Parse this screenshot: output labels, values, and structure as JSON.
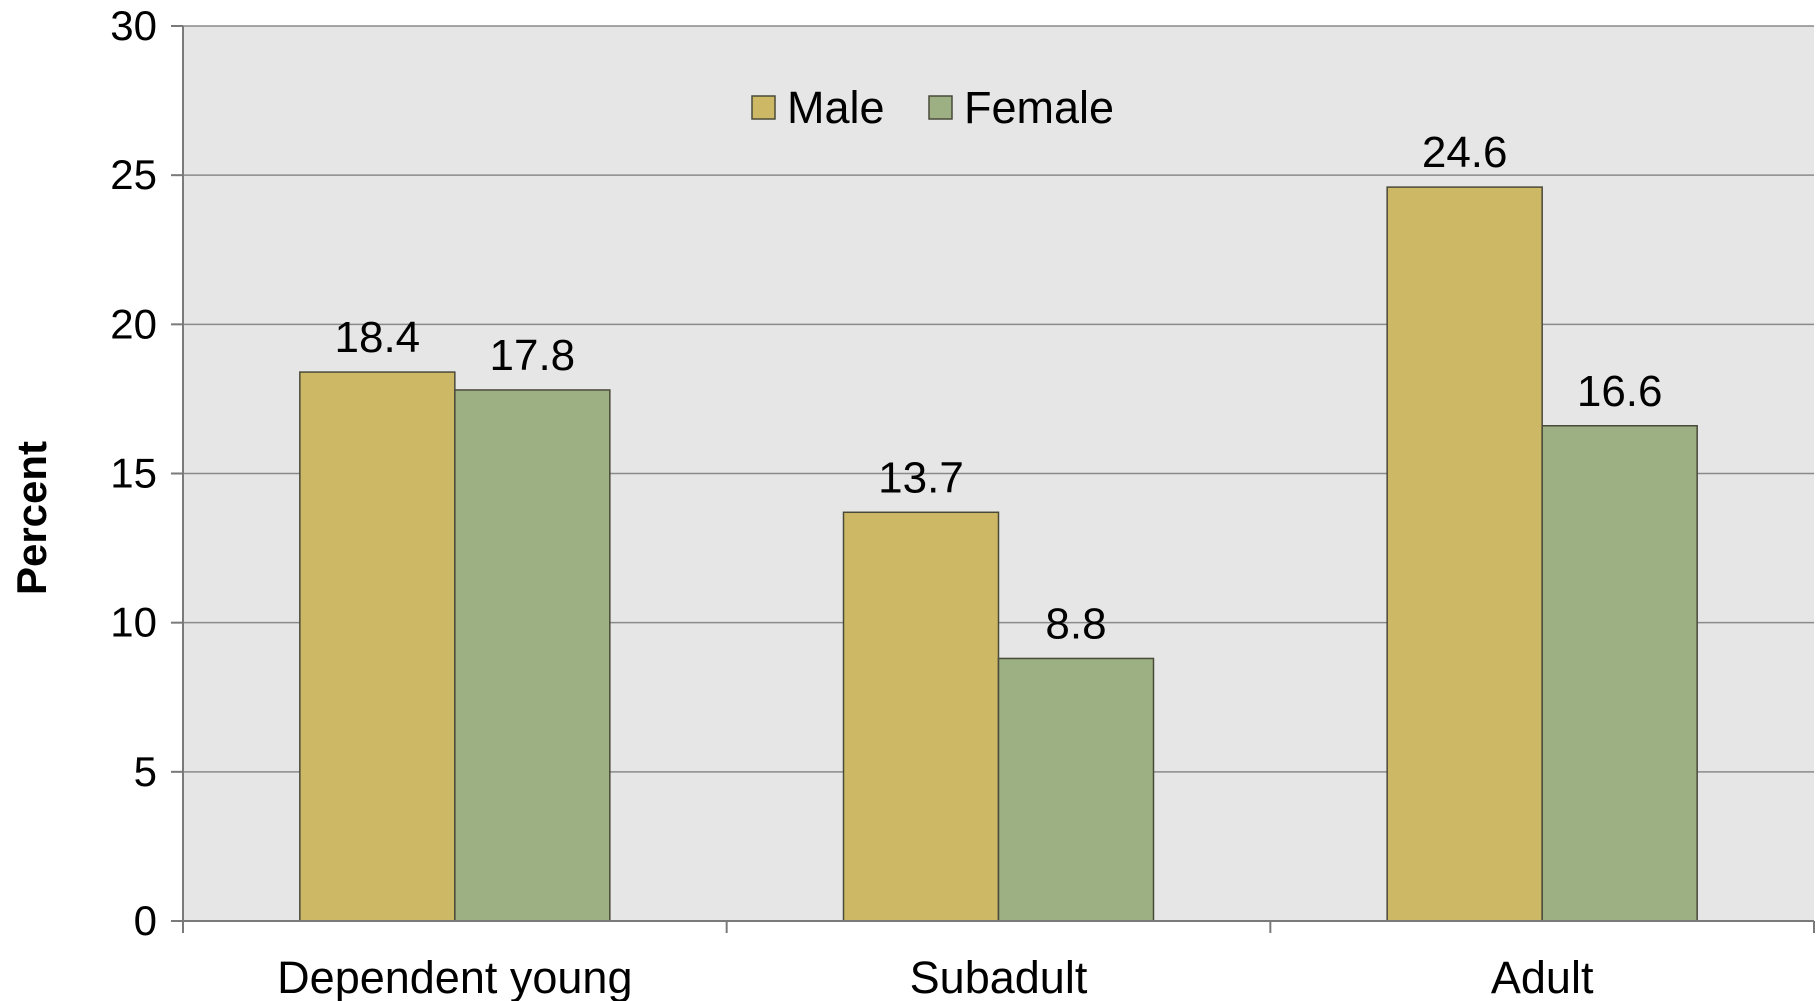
{
  "chart_data": {
    "type": "bar",
    "categories": [
      "Dependent young",
      "Subadult",
      "Adult"
    ],
    "series": [
      {
        "name": "Male",
        "values": [
          18.4,
          13.7,
          24.6
        ],
        "color": "#cdb865"
      },
      {
        "name": "Female",
        "values": [
          17.8,
          8.8,
          16.6
        ],
        "color": "#9cb083"
      }
    ],
    "data_labels": [
      [
        "18.4",
        "13.7",
        "24.6"
      ],
      [
        "17.8",
        "8.8",
        "16.6"
      ]
    ],
    "ylabel": "Percent",
    "xlabel": "",
    "ylim": [
      0,
      30
    ],
    "yticks": [
      0,
      5,
      10,
      15,
      20,
      25,
      30
    ],
    "grid": true,
    "legend_position": "top-center",
    "plot_background": "#e6e6e6"
  }
}
